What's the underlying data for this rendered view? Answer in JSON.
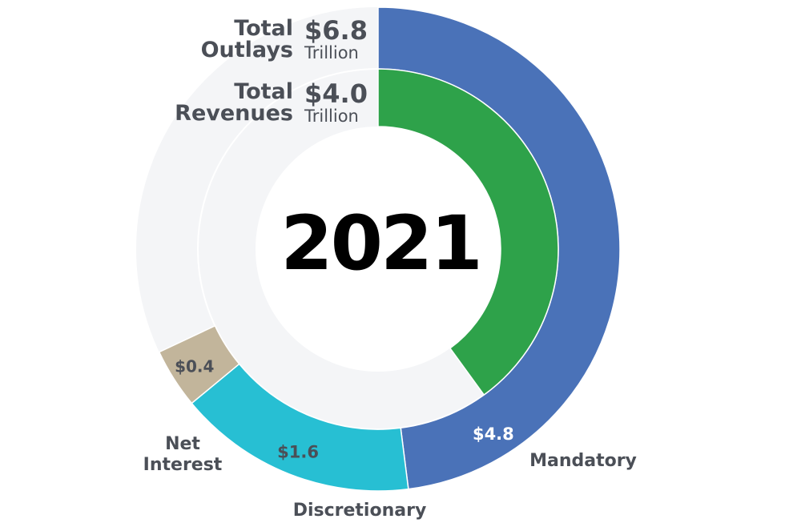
{
  "chart_data": {
    "type": "pie",
    "center_label": "2021",
    "outer_ring": {
      "label": "Total Outlays",
      "total": 6.8,
      "total_text": "$6.8",
      "unit": "Trillion",
      "segments": [
        {
          "name": "Mandatory",
          "value": 4.8,
          "value_text": "$4.8",
          "color": "#4a72b8"
        },
        {
          "name": "Discretionary",
          "value": 1.6,
          "value_text": "$1.6",
          "color": "#27bfd3"
        },
        {
          "name": "Net Interest",
          "value": 0.4,
          "value_text": "$0.4",
          "color": "#c2b59b"
        }
      ]
    },
    "inner_ring": {
      "label": "Total Revenues",
      "total": 4.0,
      "total_text": "$4.0",
      "unit": "Trillion",
      "segments": [
        {
          "name": "Revenues",
          "value": 4.0,
          "color": "#2ea24a"
        }
      ]
    },
    "track_color": "#f4f5f7"
  },
  "legend": {
    "outlays": {
      "name_line1": "Total",
      "name_line2": "Outlays",
      "amount": "$6.8",
      "unit": "Trillion"
    },
    "revenues": {
      "name_line1": "Total",
      "name_line2": "Revenues",
      "amount": "$4.0",
      "unit": "Trillion"
    }
  },
  "labels": {
    "mandatory": "Mandatory",
    "discretionary": "Discretionary",
    "net_interest_line1": "Net",
    "net_interest_line2": "Interest"
  }
}
